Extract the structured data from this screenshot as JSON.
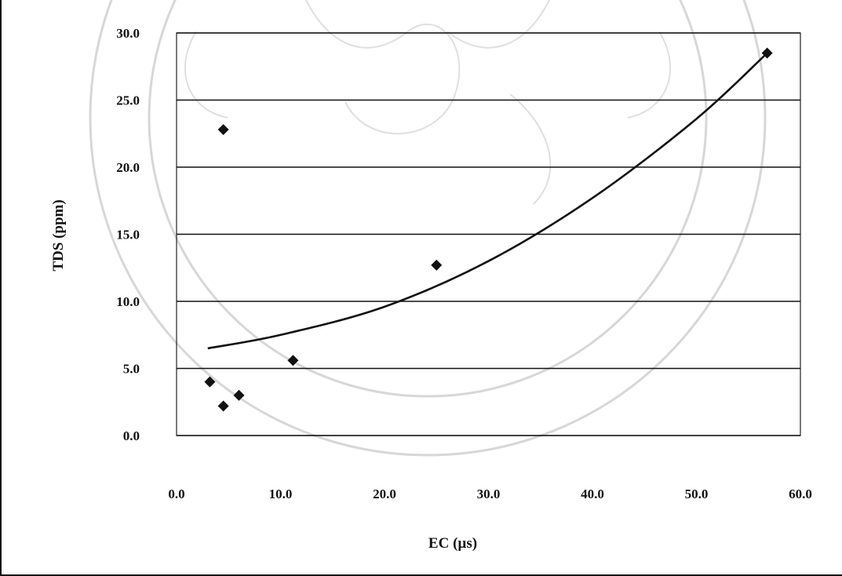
{
  "chart_data": {
    "type": "scatter",
    "title": "",
    "xlabel": "EC (µs)",
    "ylabel": "TDS (ppm)",
    "xlim": [
      0,
      60
    ],
    "ylim": [
      0,
      30
    ],
    "x_ticks": [
      "0.0",
      "10.0",
      "20.0",
      "30.0",
      "40.0",
      "50.0",
      "60.0"
    ],
    "y_ticks": [
      "0.0",
      "5.0",
      "10.0",
      "15.0",
      "20.0",
      "25.0",
      "30.0"
    ],
    "grid": "horizontal",
    "legend": "none",
    "series": [
      {
        "marker": "diamond",
        "color": "#111111",
        "points": [
          {
            "x": 3.2,
            "y": 4.0
          },
          {
            "x": 4.5,
            "y": 2.2
          },
          {
            "x": 6.0,
            "y": 3.0
          },
          {
            "x": 4.5,
            "y": 22.8
          },
          {
            "x": 11.2,
            "y": 5.6
          },
          {
            "x": 25.0,
            "y": 12.7
          },
          {
            "x": 56.8,
            "y": 28.5
          }
        ]
      }
    ],
    "trendline": {
      "type": "polynomial",
      "color": "#111111",
      "points": [
        {
          "x": 3.0,
          "y": 6.5
        },
        {
          "x": 10.0,
          "y": 7.5
        },
        {
          "x": 20.0,
          "y": 9.6
        },
        {
          "x": 30.0,
          "y": 13.0
        },
        {
          "x": 40.0,
          "y": 17.7
        },
        {
          "x": 50.0,
          "y": 23.6
        },
        {
          "x": 56.8,
          "y": 28.5
        }
      ]
    }
  }
}
